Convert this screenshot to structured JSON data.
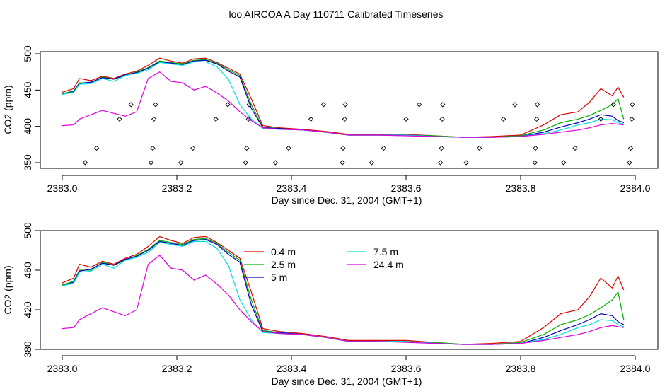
{
  "title": "loo AIRCOA A  Day 110711  Calibrated Timeseries",
  "colors": {
    "0.4 m": "#e00000",
    "2.5 m": "#00b000",
    "5 m": "#0000c0",
    "7.5 m": "#00e0e0",
    "24.4 m": "#e000e0"
  },
  "chart_data": [
    {
      "type": "line",
      "panel": "top",
      "xlabel": "Day since Dec. 31, 2004 (GMT+1)",
      "ylabel": "CO2 (ppm)",
      "xlim": [
        2383.0,
        2384.0
      ],
      "ylim": [
        345,
        502
      ],
      "xticks": [
        2383.0,
        2383.2,
        2383.4,
        2383.6,
        2383.8,
        2384.0
      ],
      "xtick_labels": [
        "2383.0",
        "2383.2",
        "2383.4",
        "2383.6",
        "2383.8",
        "2384.0"
      ],
      "yticks": [
        350,
        400,
        450,
        500
      ],
      "ytick_labels": [
        "350",
        "400",
        "450",
        "500"
      ],
      "series": [
        {
          "key": "0.4 m",
          "x": [
            2383.0,
            2383.02,
            2383.03,
            2383.05,
            2383.07,
            2383.09,
            2383.11,
            2383.13,
            2383.15,
            2383.17,
            2383.19,
            2383.21,
            2383.23,
            2383.25,
            2383.27,
            2383.29,
            2383.31,
            2383.33,
            2383.35,
            2383.38,
            2383.42,
            2383.46,
            2383.5,
            2383.55,
            2383.6,
            2383.65,
            2383.7,
            2383.75,
            2383.8,
            2383.84,
            2383.87,
            2383.9,
            2383.92,
            2383.94,
            2383.96,
            2383.97,
            2383.98
          ],
          "y": [
            447,
            452,
            466,
            463,
            469,
            466,
            472,
            476,
            484,
            494,
            490,
            487,
            493,
            494,
            488,
            480,
            472,
            438,
            401,
            398,
            396,
            393,
            389,
            389,
            389,
            387,
            385,
            386,
            388,
            402,
            416,
            420,
            433,
            452,
            442,
            454,
            440
          ]
        },
        {
          "key": "2.5 m",
          "x": [
            2383.0,
            2383.02,
            2383.03,
            2383.05,
            2383.07,
            2383.09,
            2383.11,
            2383.13,
            2383.15,
            2383.17,
            2383.19,
            2383.21,
            2383.23,
            2383.25,
            2383.27,
            2383.29,
            2383.31,
            2383.33,
            2383.35,
            2383.38,
            2383.42,
            2383.46,
            2383.5,
            2383.55,
            2383.6,
            2383.65,
            2383.7,
            2383.75,
            2383.8,
            2383.84,
            2383.87,
            2383.9,
            2383.92,
            2383.94,
            2383.96,
            2383.97,
            2383.98
          ],
          "y": [
            445,
            449,
            460,
            460,
            468,
            465,
            470,
            475,
            481,
            490,
            488,
            486,
            491,
            492,
            487,
            478,
            470,
            430,
            399,
            397,
            395,
            392,
            388,
            388,
            388,
            387,
            385,
            385,
            387,
            395,
            405,
            410,
            415,
            422,
            430,
            438,
            410
          ]
        },
        {
          "key": "5 m",
          "x": [
            2383.0,
            2383.02,
            2383.03,
            2383.05,
            2383.07,
            2383.09,
            2383.11,
            2383.13,
            2383.15,
            2383.17,
            2383.19,
            2383.21,
            2383.23,
            2383.25,
            2383.27,
            2383.29,
            2383.31,
            2383.33,
            2383.35,
            2383.38,
            2383.42,
            2383.46,
            2383.5,
            2383.55,
            2383.6,
            2383.65,
            2383.7,
            2383.75,
            2383.8,
            2383.84,
            2383.87,
            2383.9,
            2383.92,
            2383.94,
            2383.96,
            2383.97,
            2383.98
          ],
          "y": [
            444,
            448,
            459,
            461,
            467,
            465,
            471,
            474,
            480,
            489,
            487,
            485,
            490,
            491,
            486,
            476,
            468,
            425,
            398,
            397,
            395,
            392,
            388,
            388,
            388,
            386,
            385,
            385,
            386,
            392,
            399,
            405,
            410,
            416,
            414,
            408,
            405
          ]
        },
        {
          "key": "7.5 m",
          "x": [
            2383.0,
            2383.02,
            2383.03,
            2383.05,
            2383.07,
            2383.09,
            2383.11,
            2383.13,
            2383.15,
            2383.17,
            2383.19,
            2383.21,
            2383.23,
            2383.25,
            2383.27,
            2383.29,
            2383.31,
            2383.33,
            2383.35,
            2383.38,
            2383.42,
            2383.46,
            2383.5,
            2383.55,
            2383.6,
            2383.65,
            2383.7,
            2383.75,
            2383.8,
            2383.84,
            2383.87,
            2383.9,
            2383.92,
            2383.94,
            2383.96,
            2383.97,
            2383.98
          ],
          "y": [
            444,
            447,
            458,
            459,
            466,
            462,
            470,
            473,
            478,
            488,
            486,
            484,
            489,
            489,
            482,
            465,
            430,
            410,
            397,
            396,
            395,
            392,
            388,
            388,
            388,
            386,
            385,
            385,
            386,
            390,
            395,
            402,
            405,
            410,
            409,
            405,
            403
          ]
        },
        {
          "key": "24.4 m",
          "x": [
            2383.0,
            2383.02,
            2383.03,
            2383.05,
            2383.07,
            2383.09,
            2383.11,
            2383.13,
            2383.15,
            2383.17,
            2383.19,
            2383.21,
            2383.23,
            2383.25,
            2383.27,
            2383.29,
            2383.31,
            2383.33,
            2383.35,
            2383.38,
            2383.42,
            2383.46,
            2383.5,
            2383.55,
            2383.6,
            2383.65,
            2383.7,
            2383.75,
            2383.8,
            2383.84,
            2383.87,
            2383.9,
            2383.92,
            2383.94,
            2383.96,
            2383.97,
            2383.98
          ],
          "y": [
            401,
            402,
            410,
            416,
            422,
            418,
            414,
            420,
            466,
            475,
            462,
            460,
            450,
            455,
            446,
            435,
            420,
            408,
            398,
            396,
            395,
            392,
            388,
            388,
            387,
            386,
            385,
            385,
            386,
            389,
            392,
            395,
            398,
            402,
            404,
            403,
            402
          ]
        }
      ],
      "markers": {
        "shape": "diamond",
        "x": [
          2383.04,
          2383.06,
          2383.1,
          2383.12,
          2383.155,
          2383.158,
          2383.16,
          2383.163,
          2383.207,
          2383.228,
          2383.268,
          2383.289,
          2383.32,
          2383.322,
          2383.325,
          2383.326,
          2383.372,
          2383.395,
          2383.434,
          2383.456,
          2383.489,
          2383.49,
          2383.493,
          2383.494,
          2383.54,
          2383.561,
          2383.6,
          2383.623,
          2383.66,
          2383.662,
          2383.663,
          2383.664,
          2383.705,
          2383.728,
          2383.77,
          2383.79,
          2383.825,
          2383.826,
          2383.828,
          2383.829,
          2383.875,
          2383.895,
          2383.94,
          2383.962,
          2383.99,
          2383.992,
          2383.994,
          2383.995
        ],
        "y": [
          350,
          370,
          410,
          430,
          350,
          370,
          410,
          430,
          350,
          370,
          410,
          430,
          350,
          370,
          410,
          430,
          350,
          370,
          410,
          430,
          350,
          370,
          410,
          430,
          350,
          370,
          410,
          430,
          350,
          370,
          410,
          430,
          350,
          370,
          410,
          430,
          350,
          370,
          410,
          430,
          350,
          370,
          410,
          430,
          350,
          370,
          410,
          430
        ]
      }
    },
    {
      "type": "line",
      "panel": "bottom",
      "xlabel": "Day since Dec. 31, 2004 (GMT+1)",
      "ylabel": "CO2 (ppm)",
      "xlim": [
        2383.0,
        2384.0
      ],
      "ylim": [
        380,
        502
      ],
      "xticks": [
        2383.0,
        2383.2,
        2383.4,
        2383.6,
        2383.8,
        2384.0
      ],
      "xtick_labels": [
        "2383.0",
        "2383.2",
        "2383.4",
        "2383.6",
        "2383.8",
        "2384.0"
      ],
      "yticks": [
        380,
        420,
        460,
        500
      ],
      "ytick_labels": [
        "380",
        "420",
        "460",
        "500"
      ],
      "legend": {
        "placement": "top-center",
        "entries": [
          "0.4 m",
          "2.5 m",
          "5 m",
          "7.5 m",
          "24.4 m"
        ]
      },
      "series": [
        {
          "key": "0.4 m",
          "name": "0.4 m",
          "x": [
            2383.0,
            2383.02,
            2383.03,
            2383.05,
            2383.07,
            2383.09,
            2383.11,
            2383.13,
            2383.15,
            2383.17,
            2383.19,
            2383.21,
            2383.23,
            2383.25,
            2383.27,
            2383.29,
            2383.31,
            2383.33,
            2383.35,
            2383.38,
            2383.42,
            2383.46,
            2383.5,
            2383.55,
            2383.6,
            2383.65,
            2383.7,
            2383.75,
            2383.8,
            2383.84,
            2383.87,
            2383.9,
            2383.92,
            2383.94,
            2383.96,
            2383.97,
            2383.98
          ],
          "y": [
            447,
            452,
            466,
            463,
            469,
            466,
            472,
            476,
            484,
            494,
            490,
            487,
            493,
            494,
            488,
            480,
            472,
            438,
            401,
            398,
            396,
            393,
            389,
            389,
            389,
            387,
            385,
            386,
            388,
            402,
            416,
            420,
            433,
            452,
            442,
            454,
            440
          ]
        },
        {
          "key": "2.5 m",
          "name": "2.5 m",
          "x": [
            2383.0,
            2383.02,
            2383.03,
            2383.05,
            2383.07,
            2383.09,
            2383.11,
            2383.13,
            2383.15,
            2383.17,
            2383.19,
            2383.21,
            2383.23,
            2383.25,
            2383.27,
            2383.29,
            2383.31,
            2383.33,
            2383.35,
            2383.38,
            2383.42,
            2383.46,
            2383.5,
            2383.55,
            2383.6,
            2383.65,
            2383.7,
            2383.75,
            2383.8,
            2383.84,
            2383.87,
            2383.9,
            2383.92,
            2383.94,
            2383.96,
            2383.97,
            2383.98
          ],
          "y": [
            445,
            449,
            460,
            460,
            468,
            465,
            470,
            475,
            481,
            490,
            488,
            486,
            491,
            492,
            487,
            478,
            470,
            430,
            399,
            397,
            395,
            392,
            388,
            388,
            388,
            387,
            385,
            385,
            387,
            395,
            405,
            410,
            415,
            422,
            430,
            438,
            410
          ]
        },
        {
          "key": "5 m",
          "name": "5 m",
          "x": [
            2383.0,
            2383.02,
            2383.03,
            2383.05,
            2383.07,
            2383.09,
            2383.11,
            2383.13,
            2383.15,
            2383.17,
            2383.19,
            2383.21,
            2383.23,
            2383.25,
            2383.27,
            2383.29,
            2383.31,
            2383.33,
            2383.35,
            2383.38,
            2383.42,
            2383.46,
            2383.5,
            2383.55,
            2383.6,
            2383.65,
            2383.7,
            2383.75,
            2383.8,
            2383.84,
            2383.87,
            2383.9,
            2383.92,
            2383.94,
            2383.96,
            2383.97,
            2383.98
          ],
          "y": [
            444,
            448,
            459,
            461,
            467,
            465,
            471,
            474,
            480,
            489,
            487,
            485,
            490,
            491,
            486,
            476,
            468,
            425,
            398,
            397,
            395,
            392,
            388,
            388,
            388,
            386,
            385,
            385,
            386,
            392,
            399,
            405,
            410,
            416,
            414,
            408,
            405
          ]
        },
        {
          "key": "7.5 m",
          "name": "7.5 m",
          "x": [
            2383.0,
            2383.02,
            2383.03,
            2383.05,
            2383.07,
            2383.09,
            2383.11,
            2383.13,
            2383.15,
            2383.17,
            2383.19,
            2383.21,
            2383.23,
            2383.25,
            2383.27,
            2383.29,
            2383.31,
            2383.33,
            2383.35,
            2383.38,
            2383.42,
            2383.46,
            2383.5,
            2383.55,
            2383.6,
            2383.65,
            2383.7,
            2383.75,
            2383.8,
            2383.84,
            2383.87,
            2383.9,
            2383.92,
            2383.94,
            2383.96,
            2383.97,
            2383.98
          ],
          "y": [
            444,
            447,
            458,
            459,
            466,
            462,
            470,
            473,
            478,
            488,
            486,
            484,
            489,
            489,
            482,
            465,
            430,
            410,
            397,
            396,
            395,
            392,
            388,
            388,
            388,
            386,
            385,
            385,
            386,
            390,
            395,
            402,
            405,
            410,
            409,
            405,
            403
          ]
        },
        {
          "key": "24.4 m",
          "name": "24.4 m",
          "x": [
            2383.0,
            2383.02,
            2383.03,
            2383.05,
            2383.07,
            2383.09,
            2383.11,
            2383.13,
            2383.15,
            2383.17,
            2383.19,
            2383.21,
            2383.23,
            2383.25,
            2383.27,
            2383.29,
            2383.31,
            2383.33,
            2383.35,
            2383.38,
            2383.42,
            2383.46,
            2383.5,
            2383.55,
            2383.6,
            2383.65,
            2383.7,
            2383.75,
            2383.8,
            2383.84,
            2383.87,
            2383.9,
            2383.92,
            2383.94,
            2383.96,
            2383.97,
            2383.98
          ],
          "y": [
            401,
            402,
            410,
            416,
            422,
            418,
            414,
            420,
            466,
            475,
            462,
            460,
            450,
            455,
            446,
            435,
            420,
            408,
            398,
            396,
            395,
            392,
            388,
            388,
            387,
            386,
            385,
            385,
            386,
            389,
            392,
            395,
            398,
            402,
            404,
            403,
            402
          ]
        }
      ]
    }
  ]
}
